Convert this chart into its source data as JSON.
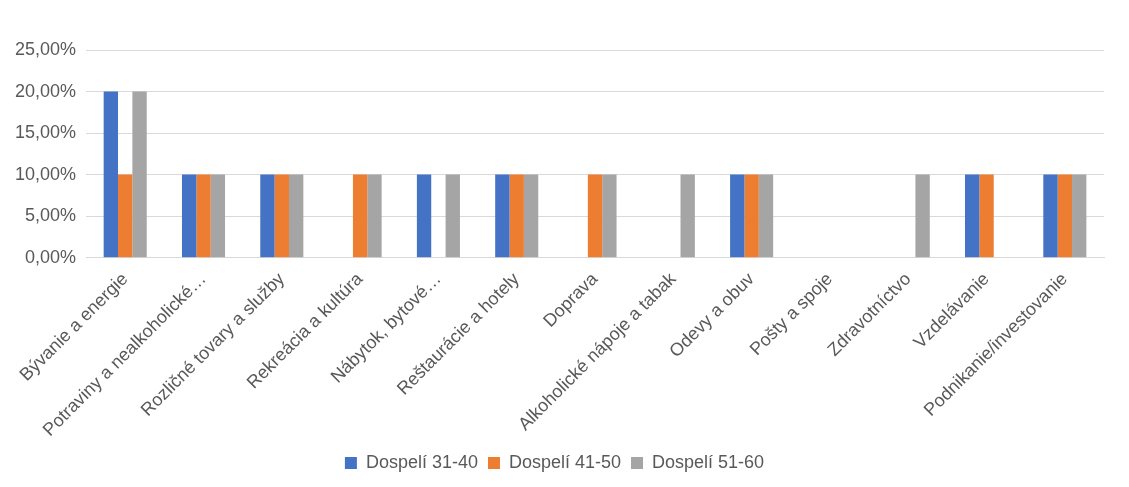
{
  "chart_data": {
    "type": "bar",
    "categories": [
      "Bývanie a energie",
      "Potraviny a nealkoholické…",
      "Rozličné tovary a služby",
      "Rekreácia a kultúra",
      "Nábytok, bytové…",
      "Reštaurácie a hotely",
      "Doprava",
      "Alkoholické nápoje a tabak",
      "Odevy a obuv",
      "Pošty a spoje",
      "Zdravotníctvo",
      "Vzdelávanie",
      "Podnikanie/investovanie"
    ],
    "series": [
      {
        "name": "Dospelí 31-40",
        "color": "#4472c4",
        "values": [
          20,
          10,
          10,
          0,
          10,
          10,
          0,
          0,
          10,
          0,
          0,
          10,
          10
        ]
      },
      {
        "name": "Dospelí 41-50",
        "color": "#ed7d31",
        "values": [
          10,
          10,
          10,
          10,
          0,
          10,
          10,
          0,
          10,
          0,
          0,
          10,
          10
        ]
      },
      {
        "name": "Dospelí 51-60",
        "color": "#a5a5a5",
        "values": [
          20,
          10,
          10,
          10,
          10,
          10,
          10,
          10,
          10,
          0,
          10,
          0,
          10
        ]
      }
    ],
    "ylim": [
      0,
      25
    ],
    "yticks": [
      {
        "value": 0,
        "label": "0,00%"
      },
      {
        "value": 5,
        "label": "5,00%"
      },
      {
        "value": 10,
        "label": "10,00%"
      },
      {
        "value": 15,
        "label": "15,00%"
      },
      {
        "value": 20,
        "label": "20,00%"
      },
      {
        "value": 25,
        "label": "25,00%"
      }
    ],
    "grid": "y",
    "legend": "bottom"
  }
}
